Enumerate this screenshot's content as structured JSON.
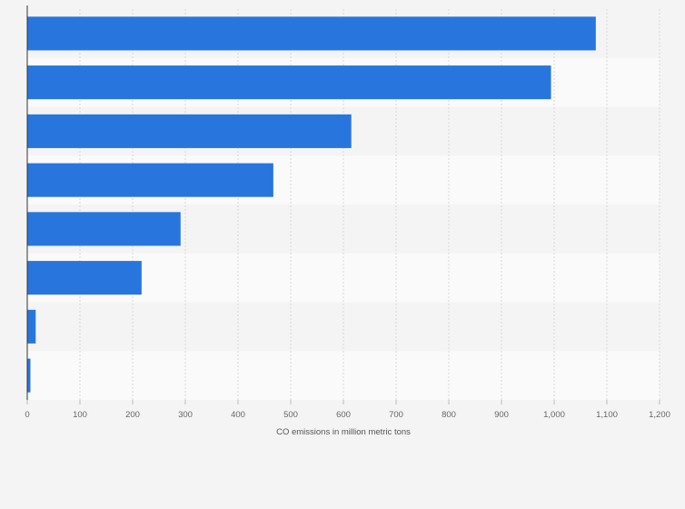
{
  "chart_data": {
    "type": "bar",
    "orientation": "horizontal",
    "title": "",
    "xlabel": "CO emissions in million metric tons",
    "ylabel": "",
    "categories": [
      "",
      "",
      "",
      "",
      "",
      "",
      "",
      ""
    ],
    "values": [
      1079,
      994,
      615,
      467,
      291,
      217,
      16,
      6
    ],
    "xlim": [
      0,
      1200
    ],
    "xticks": [
      0,
      100,
      200,
      300,
      400,
      500,
      600,
      700,
      800,
      900,
      1000,
      1100,
      1200
    ],
    "xtick_labels": [
      "0",
      "100",
      "200",
      "300",
      "400",
      "500",
      "600",
      "700",
      "800",
      "900",
      "1,000",
      "1,100",
      "1,200"
    ],
    "grid": true,
    "legend": "none",
    "bar_color": "#2876dd"
  }
}
